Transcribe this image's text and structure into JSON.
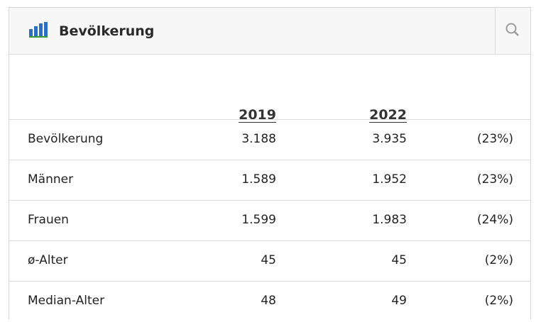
{
  "header": {
    "title": "Bevölkerung"
  },
  "table": {
    "columns": [
      "2019",
      "2022"
    ],
    "rows": [
      [
        "Bevölkerung",
        "3.188",
        "3.935",
        "(23%)"
      ],
      [
        "Männer",
        "1.589",
        "1.952",
        "(23%)"
      ],
      [
        "Frauen",
        "1.599",
        "1.983",
        "(24%)"
      ],
      [
        "ø-Alter",
        "45",
        "45",
        "(2%)"
      ],
      [
        "Median-Alter",
        "48",
        "49",
        "(2%)"
      ]
    ]
  }
}
